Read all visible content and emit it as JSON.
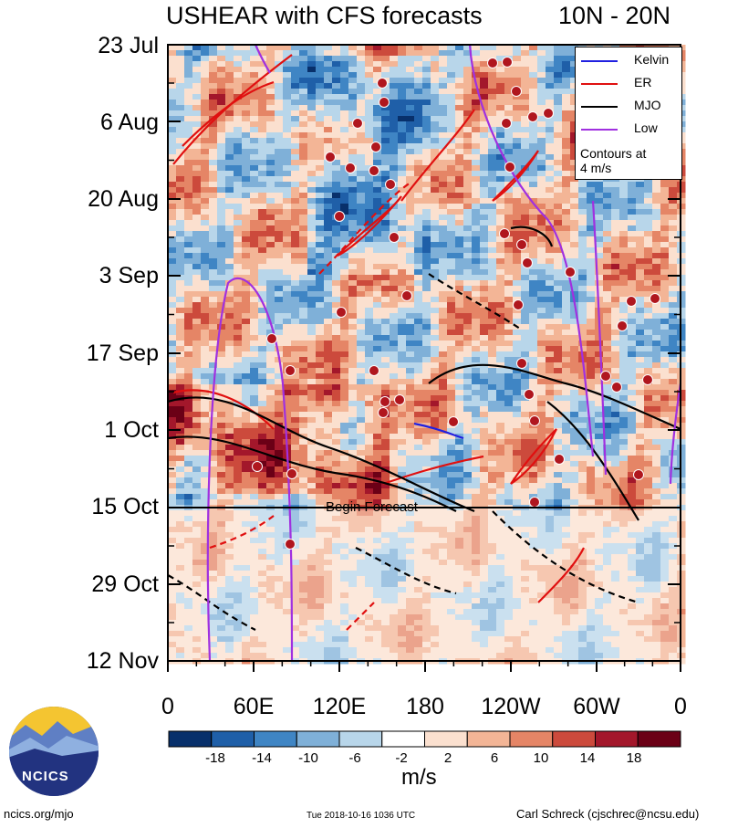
{
  "chart_data": {
    "type": "heatmap",
    "title": "USHEAR with CFS forecasts",
    "region": "10N - 20N",
    "xlabel": "",
    "ylabel": "",
    "x_ticks": [
      "0",
      "60E",
      "120E",
      "180",
      "120W",
      "60W",
      "0"
    ],
    "y_ticks": [
      "23 Jul",
      "6 Aug",
      "20 Aug",
      "3 Sep",
      "17 Sep",
      "1 Oct",
      "15 Oct",
      "29 Oct",
      "12 Nov"
    ],
    "colorbar": {
      "units": "m/s",
      "labels": [
        "-18",
        "-14",
        "-10",
        "-6",
        "-2",
        "2",
        "6",
        "10",
        "14",
        "18"
      ],
      "colors": [
        "#08306b",
        "#1f5fa8",
        "#3f85c4",
        "#7fb0d8",
        "#b8d6ea",
        "#dfecf5",
        "#ffffff",
        "#fbe0cf",
        "#f3b596",
        "#e58566",
        "#cc4a3c",
        "#a3172b",
        "#6b0016"
      ]
    },
    "legend": [
      {
        "label": "Kelvin",
        "color": "#2020e0"
      },
      {
        "label": "ER",
        "color": "#e01010"
      },
      {
        "label": "MJO",
        "color": "#000000"
      },
      {
        "label": "Low",
        "color": "#a030e0"
      }
    ],
    "legend_note": [
      "Contours at",
      "4 m/s"
    ],
    "annotation": "Begin Forecast",
    "forecast_start": "15 Oct"
  },
  "logo": {
    "text": "NCICS"
  },
  "footer": {
    "left": "ncics.org/mjo",
    "center": "Tue 2018-10-16 1036 UTC",
    "right": "Carl Schreck (cjschrec@ncsu.edu)"
  }
}
